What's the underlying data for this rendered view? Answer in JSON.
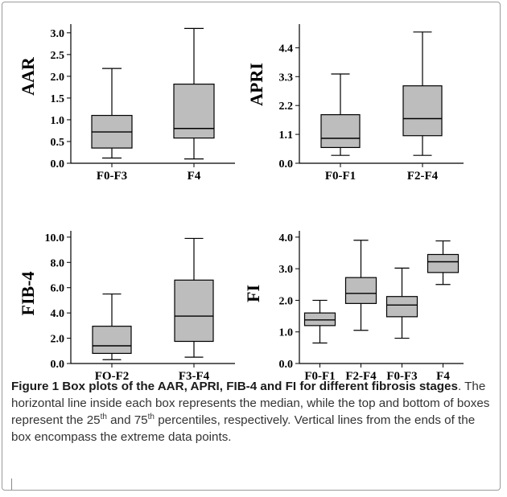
{
  "chart_data": [
    {
      "type": "box",
      "ylabel": "AAR",
      "ylim": [
        0,
        3.2
      ],
      "yticks": [
        "0.0",
        "0.5",
        "1.0",
        "1.5",
        "2.0",
        "2.5",
        "3.0"
      ],
      "categories": [
        "F0-F3",
        "F4"
      ],
      "boxes": [
        {
          "min": 0.12,
          "q1": 0.35,
          "median": 0.72,
          "q3": 1.1,
          "max": 2.18
        },
        {
          "min": 0.1,
          "q1": 0.58,
          "median": 0.8,
          "q3": 1.82,
          "max": 3.1
        }
      ]
    },
    {
      "type": "box",
      "ylabel": "APRI",
      "ylim": [
        0,
        5.3
      ],
      "yticks": [
        "0.0",
        "1.1",
        "2.2",
        "3.3",
        "4.4"
      ],
      "categories": [
        "F0-F1",
        "F2-F4"
      ],
      "boxes": [
        {
          "min": 0.3,
          "q1": 0.6,
          "median": 0.95,
          "q3": 1.85,
          "max": 3.4
        },
        {
          "min": 0.3,
          "q1": 1.05,
          "median": 1.7,
          "q3": 2.95,
          "max": 5.0
        }
      ]
    },
    {
      "type": "box",
      "ylabel": "FIB-4",
      "ylim": [
        0,
        10.5
      ],
      "yticks": [
        "0.0",
        "2.0",
        "4.0",
        "6.0",
        "8.0",
        "10.0"
      ],
      "categories": [
        "FO-F2",
        "F3-F4"
      ],
      "boxes": [
        {
          "min": 0.3,
          "q1": 0.8,
          "median": 1.4,
          "q3": 2.95,
          "max": 5.5
        },
        {
          "min": 0.5,
          "q1": 1.75,
          "median": 3.75,
          "q3": 6.6,
          "max": 9.9
        }
      ]
    },
    {
      "type": "box",
      "ylabel": "FI",
      "ylim": [
        0,
        4.2
      ],
      "yticks": [
        "0.0",
        "1.0",
        "2.0",
        "3.0",
        "4.0"
      ],
      "categories": [
        "F0-F1",
        "F2-F4",
        "F0-F3",
        "F4"
      ],
      "boxes": [
        {
          "min": 0.65,
          "q1": 1.2,
          "median": 1.38,
          "q3": 1.6,
          "max": 2.0
        },
        {
          "min": 1.05,
          "q1": 1.9,
          "median": 2.22,
          "q3": 2.72,
          "max": 3.9
        },
        {
          "min": 0.8,
          "q1": 1.48,
          "median": 1.85,
          "q3": 2.12,
          "max": 3.02
        },
        {
          "min": 2.5,
          "q1": 2.88,
          "median": 3.22,
          "q3": 3.45,
          "max": 3.88
        }
      ]
    }
  ],
  "caption": {
    "bold": "Figure 1 Box plots of the AAR, APRI, FIB-4 and FI for different fibrosis stages",
    "text1": ". The horizontal line inside each box represents the median, while the top and bottom of boxes represent the 25",
    "sup1": "th",
    "text2": " and 75",
    "sup2": "th",
    "text3": " percentiles, respectively. Vertical lines from the ends of the box encompass the extreme data points."
  },
  "colors": {
    "box_fill": "#bdbdbd",
    "stroke": "#000000"
  }
}
